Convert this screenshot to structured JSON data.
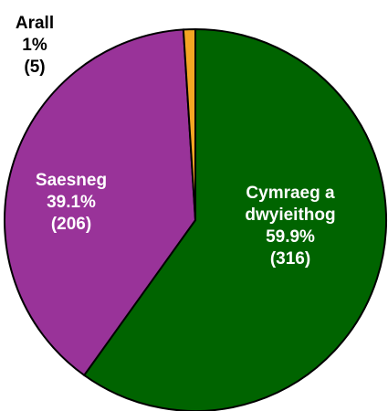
{
  "chart_data": {
    "type": "pie",
    "categories": [
      "Cymraeg a dwyieithog",
      "Saesneg",
      "Arall"
    ],
    "values": [
      59.9,
      39.1,
      1
    ],
    "value_labels": [
      "59.9%",
      "39.1%",
      "1%"
    ],
    "counts": [
      316,
      206,
      5
    ],
    "count_labels": [
      "(316)",
      "(206)",
      "(5)"
    ],
    "colors": [
      "#006400",
      "#993399",
      "#f5a623"
    ]
  }
}
